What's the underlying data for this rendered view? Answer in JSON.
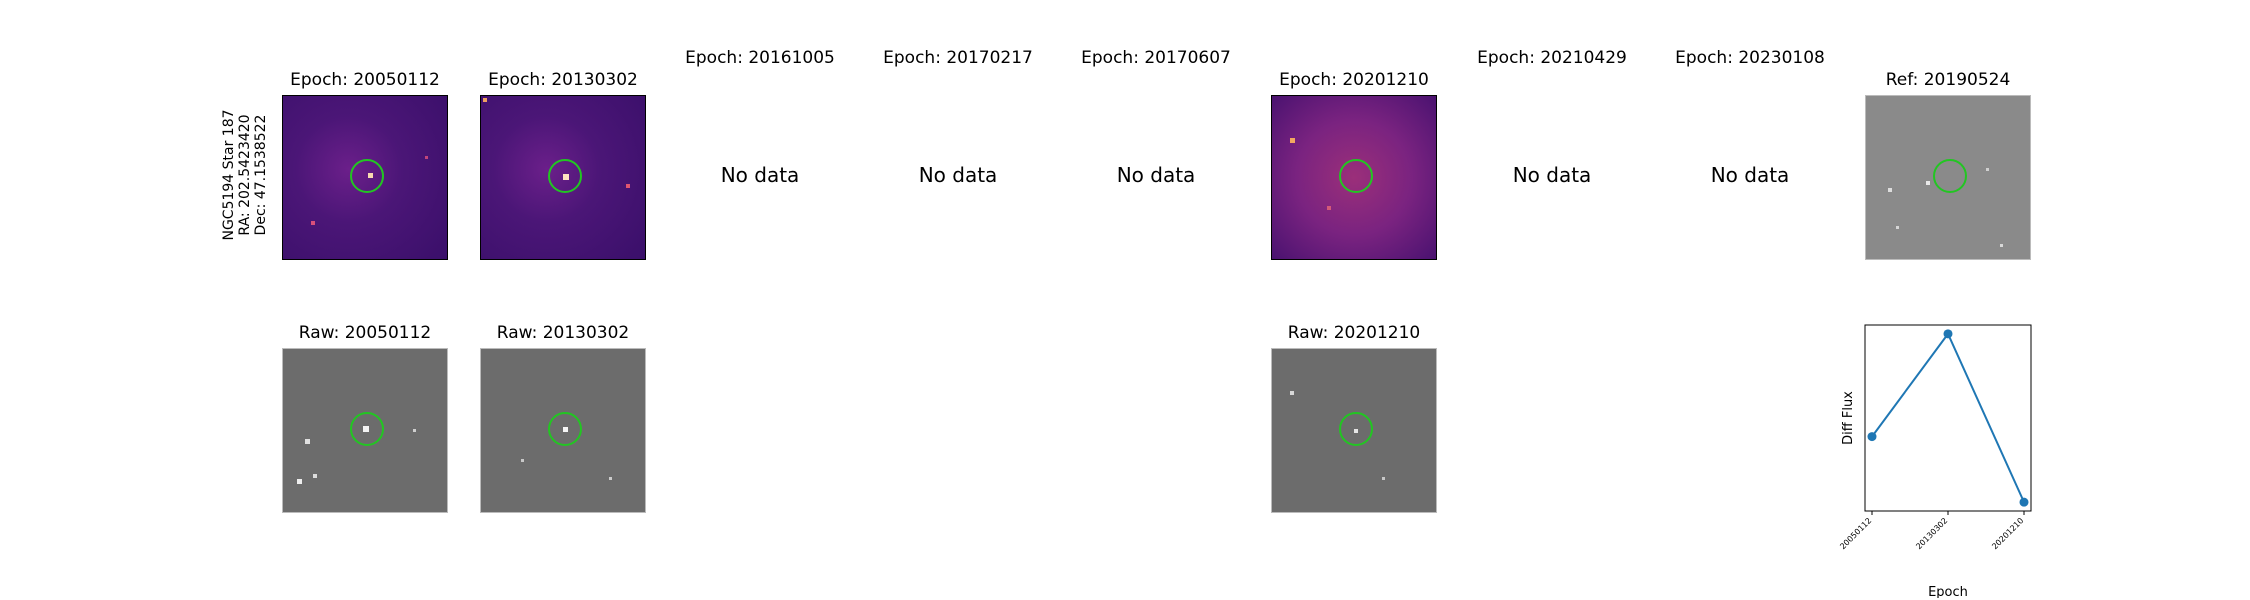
{
  "row_label": {
    "name": "NGC5194 Star 187",
    "ra": "RA: 202.5423420",
    "dec": "Dec: 47.1538522"
  },
  "epochs": [
    {
      "title": "Epoch: 20050112",
      "has_data": true
    },
    {
      "title": "Epoch: 20130302",
      "has_data": true
    },
    {
      "title": "Epoch: 20161005",
      "has_data": false
    },
    {
      "title": "Epoch: 20170217",
      "has_data": false
    },
    {
      "title": "Epoch: 20170607",
      "has_data": false
    },
    {
      "title": "Epoch: 20201210",
      "has_data": true
    },
    {
      "title": "Epoch: 20210429",
      "has_data": false
    },
    {
      "title": "Epoch: 20230108",
      "has_data": false
    }
  ],
  "no_data_text": "No data",
  "ref_title": "Ref: 20190524",
  "raw_titles": [
    "Raw: 20050112",
    "Raw: 20130302",
    "Raw: 20201210"
  ],
  "colors": {
    "marker_circle": "#22c622",
    "line": "#1f77b4"
  },
  "chart_data": {
    "type": "line",
    "x": [
      "20050112",
      "20130302",
      "20201210"
    ],
    "values": [
      0.42,
      1.0,
      0.05
    ],
    "xlabel": "Epoch",
    "ylabel": "Diff Flux",
    "ylim": [
      0.0,
      1.05
    ],
    "grid": false
  }
}
